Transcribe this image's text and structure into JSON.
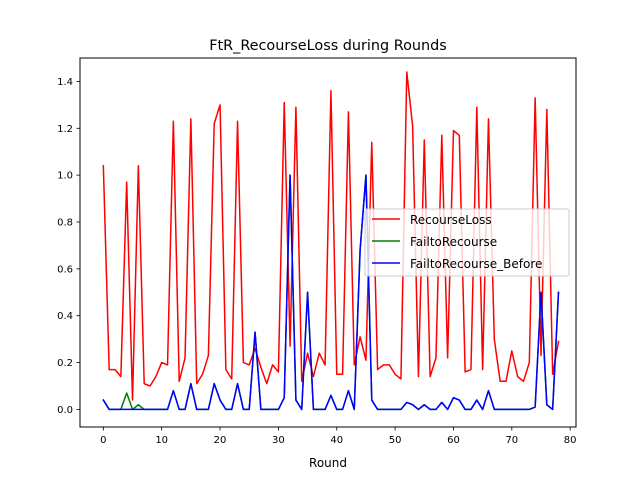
{
  "chart_data": {
    "type": "line",
    "title": "FtR_RecourseLoss during Rounds",
    "xlabel": "Round",
    "ylabel": "",
    "xlim": [
      -4,
      81
    ],
    "ylim": [
      -0.075,
      1.5
    ],
    "xticks": [
      0,
      10,
      20,
      30,
      40,
      50,
      60,
      70,
      80
    ],
    "yticks": [
      0.0,
      0.2,
      0.4,
      0.6,
      0.8,
      1.0,
      1.2,
      1.4
    ],
    "ytick_labels": [
      "0.0",
      "0.2",
      "0.4",
      "0.6",
      "0.8",
      "1.0",
      "1.2",
      "1.4"
    ],
    "grid": false,
    "legend_position": "center-right",
    "series": [
      {
        "name": "RecourseLoss",
        "color": "#ff0000",
        "x": [
          0,
          1,
          2,
          3,
          4,
          5,
          6,
          7,
          8,
          9,
          10,
          11,
          12,
          13,
          14,
          15,
          16,
          17,
          18,
          19,
          20,
          21,
          22,
          23,
          24,
          25,
          26,
          27,
          28,
          29,
          30,
          31,
          32,
          33,
          34,
          35,
          36,
          37,
          38,
          39,
          40,
          41,
          42,
          43,
          44,
          45,
          46,
          47,
          48,
          49,
          50,
          51,
          52,
          53,
          54,
          55,
          56,
          57,
          58,
          59,
          60,
          61,
          62,
          63,
          64,
          65,
          66,
          67,
          68,
          69,
          70,
          71,
          72,
          73,
          74,
          75,
          76,
          77,
          78
        ],
        "values": [
          1.04,
          0.17,
          0.17,
          0.14,
          0.97,
          0.04,
          1.04,
          0.11,
          0.1,
          0.14,
          0.2,
          0.19,
          1.23,
          0.12,
          0.22,
          1.24,
          0.11,
          0.15,
          0.23,
          1.22,
          1.3,
          0.17,
          0.13,
          1.23,
          0.2,
          0.19,
          0.26,
          0.18,
          0.11,
          0.19,
          0.16,
          1.31,
          0.27,
          1.29,
          0.12,
          0.24,
          0.14,
          0.24,
          0.19,
          1.36,
          0.15,
          0.15,
          1.27,
          0.19,
          0.31,
          0.21,
          1.14,
          0.17,
          0.19,
          0.19,
          0.15,
          0.13,
          1.44,
          1.21,
          0.14,
          1.15,
          0.14,
          0.22,
          1.17,
          0.22,
          1.19,
          1.17,
          0.16,
          0.17,
          1.29,
          0.17,
          1.24,
          0.3,
          0.12,
          0.12,
          0.25,
          0.14,
          0.12,
          0.2,
          1.33,
          0.23,
          1.28,
          0.15,
          0.29
        ]
      },
      {
        "name": "FailtoRecourse",
        "color": "#008000",
        "x": [
          0,
          1,
          2,
          3,
          4,
          5,
          6,
          7,
          8,
          9,
          10,
          11,
          12,
          13,
          14,
          15,
          16,
          17,
          18,
          19,
          20,
          21,
          22,
          23,
          24,
          25,
          26,
          27,
          28,
          29,
          30,
          31,
          32,
          33,
          34,
          35,
          36,
          37,
          38,
          39,
          40,
          41,
          42,
          43,
          44,
          45,
          46,
          47,
          48,
          49,
          50,
          51,
          52,
          53,
          54,
          55,
          56,
          57,
          58,
          59,
          60,
          61,
          62,
          63,
          64,
          65,
          66,
          67,
          68,
          69,
          70,
          71,
          72,
          73,
          74,
          75,
          76,
          77,
          78
        ],
        "values": [
          0.04,
          0.0,
          0.0,
          0.0,
          0.07,
          0.0,
          0.02,
          0.0,
          0.0,
          0.0,
          0.0,
          0.0,
          0.08,
          0.0,
          0.0,
          0.11,
          0.0,
          0.0,
          0.0,
          0.11,
          0.04,
          0.0,
          0.0,
          0.11,
          0.0,
          0.0,
          0.33,
          0.0,
          0.0,
          0.0,
          0.0,
          0.05,
          1.0,
          0.04,
          0.0,
          0.5,
          0.0,
          0.0,
          0.0,
          0.06,
          0.0,
          0.0,
          0.08,
          0.0,
          0.68,
          1.0,
          0.04,
          0.0,
          0.0,
          0.0,
          0.0,
          0.0,
          0.03,
          0.02,
          0.0,
          0.02,
          0.0,
          0.0,
          0.03,
          0.0,
          0.05,
          0.04,
          0.0,
          0.0,
          0.04,
          0.0,
          0.08,
          0.0,
          0.0,
          0.0,
          0.0,
          0.0,
          0.0,
          0.0,
          0.01,
          0.5,
          0.02,
          0.0,
          0.5
        ]
      },
      {
        "name": "FailtoRecourse_Before",
        "color": "#0000ff",
        "x": [
          0,
          1,
          2,
          3,
          4,
          5,
          6,
          7,
          8,
          9,
          10,
          11,
          12,
          13,
          14,
          15,
          16,
          17,
          18,
          19,
          20,
          21,
          22,
          23,
          24,
          25,
          26,
          27,
          28,
          29,
          30,
          31,
          32,
          33,
          34,
          35,
          36,
          37,
          38,
          39,
          40,
          41,
          42,
          43,
          44,
          45,
          46,
          47,
          48,
          49,
          50,
          51,
          52,
          53,
          54,
          55,
          56,
          57,
          58,
          59,
          60,
          61,
          62,
          63,
          64,
          65,
          66,
          67,
          68,
          69,
          70,
          71,
          72,
          73,
          74,
          75,
          76,
          77,
          78
        ],
        "values": [
          0.04,
          0.0,
          0.0,
          0.0,
          0.0,
          0.0,
          0.0,
          0.0,
          0.0,
          0.0,
          0.0,
          0.0,
          0.08,
          0.0,
          0.0,
          0.11,
          0.0,
          0.0,
          0.0,
          0.11,
          0.04,
          0.0,
          0.0,
          0.11,
          0.0,
          0.0,
          0.33,
          0.0,
          0.0,
          0.0,
          0.0,
          0.05,
          1.0,
          0.04,
          0.0,
          0.5,
          0.0,
          0.0,
          0.0,
          0.06,
          0.0,
          0.0,
          0.08,
          0.0,
          0.68,
          1.0,
          0.04,
          0.0,
          0.0,
          0.0,
          0.0,
          0.0,
          0.03,
          0.02,
          0.0,
          0.02,
          0.0,
          0.0,
          0.03,
          0.0,
          0.05,
          0.04,
          0.0,
          0.0,
          0.04,
          0.0,
          0.08,
          0.0,
          0.0,
          0.0,
          0.0,
          0.0,
          0.0,
          0.0,
          0.01,
          0.5,
          0.02,
          0.0,
          0.5
        ]
      }
    ]
  }
}
